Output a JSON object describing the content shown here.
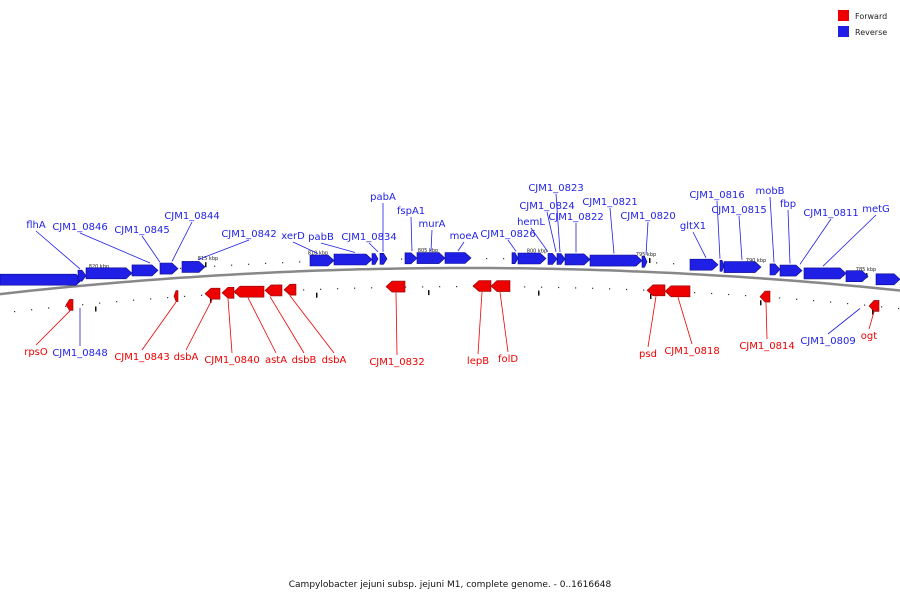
{
  "caption": "Campylobacter jejuni subsp. jejuni M1, complete genome. - 0..1616648",
  "legend": [
    {
      "label": "Forward",
      "color": "#ee0000"
    },
    {
      "label": "Reverse",
      "color": "#1f1fe6"
    }
  ],
  "colors": {
    "forward": "#ee0000",
    "reverse": "#1f1fe6",
    "backbone": "#888888"
  },
  "scale_labels": [
    "820 kbp",
    "815 kbp",
    "810 kbp",
    "805 kbp",
    "800 kbp",
    "795 kbp",
    "790 kbp",
    "785 kbp"
  ],
  "reverse_genes": [
    "flhA",
    "CJM1_0846",
    "CJM1_0845",
    "CJM1_0844",
    "CJM1_0842",
    "xerD",
    "pabB",
    "CJM1_0834",
    "pabA",
    "fspA1",
    "murA",
    "moeA",
    "CJM1_0826",
    "hemL",
    "CJM1_0824",
    "CJM1_0823",
    "CJM1_0822",
    "CJM1_0821",
    "CJM1_0820",
    "gltX1",
    "CJM1_0816",
    "CJM1_0815",
    "mobB",
    "fbp",
    "CJM1_0811",
    "metG",
    "CJM1_0848",
    "CJM1_0809"
  ],
  "forward_genes": [
    "rpsO",
    "CJM1_0843",
    "dsbA",
    "CJM1_0840",
    "astA",
    "dsbB",
    "dsbA",
    "CJM1_0832",
    "lepB",
    "folD",
    "psd",
    "CJM1_0818",
    "CJM1_0814",
    "ogt"
  ]
}
